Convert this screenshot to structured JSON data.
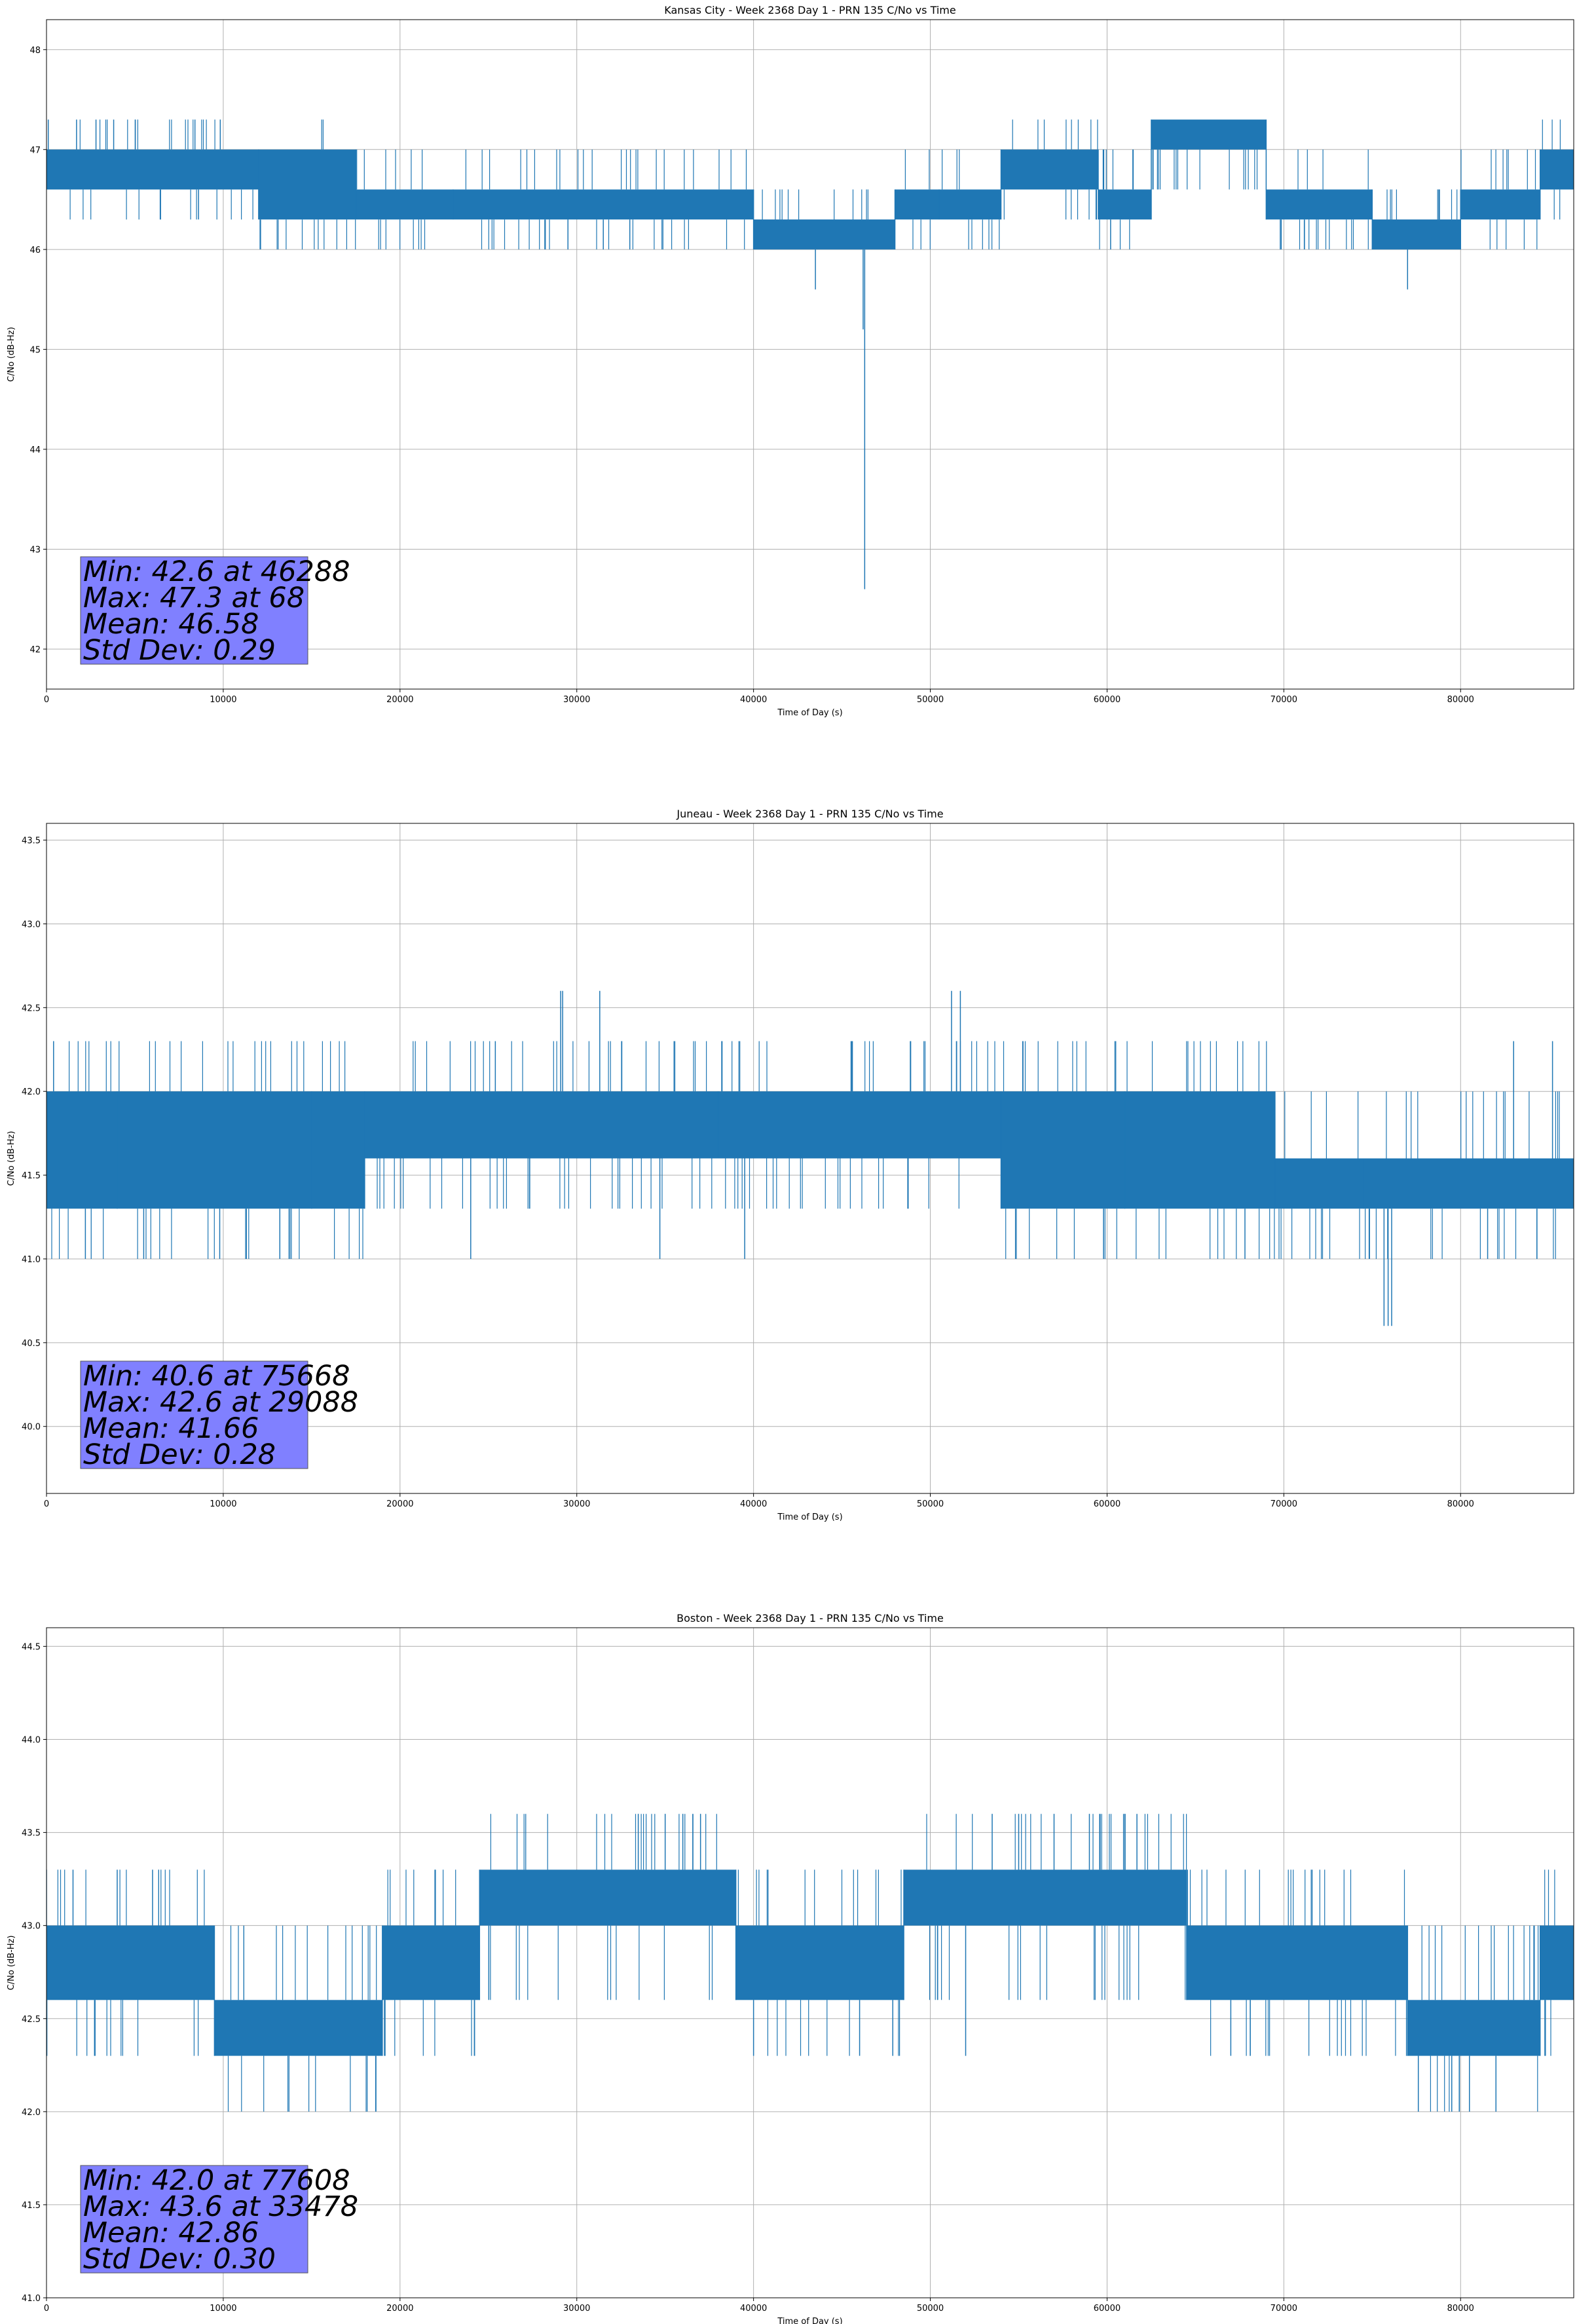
{
  "figure": {
    "background": "#ffffff"
  },
  "style": {
    "line_color": "#1f77b4",
    "grid_color": "#b0b0b0",
    "stats_box_color": "#8080ff",
    "stats_box_edge": "#555555"
  },
  "chart_data": [
    {
      "type": "line",
      "title": "Kansas City - Week 2368 Day 1 - PRN 135 C/No vs Time",
      "xlabel": "Time of Day (s)",
      "ylabel": "C/No (dB-Hz)",
      "xlim": [
        0,
        86400
      ],
      "ylim": [
        41.6,
        48.3
      ],
      "xticks": [
        0,
        10000,
        20000,
        30000,
        40000,
        50000,
        60000,
        70000,
        80000
      ],
      "yticks": [
        42,
        43,
        44,
        45,
        46,
        47,
        48
      ],
      "ytick_decimals": 0,
      "grid": true,
      "stats": [
        "Min: 42.6 at 46288",
        "Max: 47.3 at 68",
        "Mean: 46.58",
        "Std Dev: 0.29"
      ],
      "series": [
        {
          "name": "PRN 135 C/No",
          "levels": [
            46.0,
            46.3,
            46.6,
            47.0,
            47.3
          ],
          "segments": [
            {
              "x": [
                0,
                12000
              ],
              "lo": 46.6,
              "hi": 47.0
            },
            {
              "x": [
                12000,
                17500
              ],
              "lo": 46.3,
              "hi": 47.0
            },
            {
              "x": [
                17500,
                23000
              ],
              "lo": 46.3,
              "hi": 46.6
            },
            {
              "x": [
                23000,
                40000
              ],
              "lo": 46.3,
              "hi": 46.6
            },
            {
              "x": [
                40000,
                48000
              ],
              "lo": 46.0,
              "hi": 46.3
            },
            {
              "x": [
                48000,
                50500
              ],
              "lo": 46.3,
              "hi": 46.6
            },
            {
              "x": [
                50500,
                54000
              ],
              "lo": 46.3,
              "hi": 46.6
            },
            {
              "x": [
                54000,
                59500
              ],
              "lo": 46.6,
              "hi": 47.0
            },
            {
              "x": [
                59500,
                62500
              ],
              "lo": 46.3,
              "hi": 46.6
            },
            {
              "x": [
                62500,
                69000
              ],
              "lo": 47.0,
              "hi": 47.3
            },
            {
              "x": [
                69000,
                75000
              ],
              "lo": 46.3,
              "hi": 46.6
            },
            {
              "x": [
                75000,
                80000
              ],
              "lo": 46.0,
              "hi": 46.3
            },
            {
              "x": [
                80000,
                84500
              ],
              "lo": 46.3,
              "hi": 46.6
            },
            {
              "x": [
                84500,
                86400
              ],
              "lo": 46.6,
              "hi": 47.0
            }
          ],
          "spikes": [
            [
              46288,
              42.6
            ],
            [
              46200,
              45.2
            ],
            [
              43500,
              45.6
            ],
            [
              77000,
              45.6
            ],
            [
              100,
              47.3
            ],
            [
              1700,
              47.3
            ],
            [
              2800,
              47.3
            ],
            [
              3800,
              47.3
            ],
            [
              8600,
              46.3
            ],
            [
              29500,
              46.0
            ],
            [
              31500,
              46.0
            ],
            [
              33000,
              46.0
            ],
            [
              60200,
              46.0
            ],
            [
              69800,
              46.0
            ]
          ]
        }
      ]
    },
    {
      "type": "line",
      "title": "Juneau - Week 2368 Day 1 - PRN 135 C/No vs Time",
      "xlabel": "Time of Day (s)",
      "ylabel": "C/No (dB-Hz)",
      "xlim": [
        0,
        86400
      ],
      "ylim": [
        39.6,
        43.6
      ],
      "xticks": [
        0,
        10000,
        20000,
        30000,
        40000,
        50000,
        60000,
        70000,
        80000
      ],
      "yticks": [
        40.0,
        40.5,
        41.0,
        41.5,
        42.0,
        42.5,
        43.0,
        43.5
      ],
      "ytick_decimals": 1,
      "grid": true,
      "stats": [
        "Min: 40.6 at 75668",
        "Max: 42.6 at 29088",
        "Mean: 41.66",
        "Std Dev: 0.28"
      ],
      "series": [
        {
          "name": "PRN 135 C/No",
          "levels": [
            41.0,
            41.3,
            41.6,
            42.0,
            42.3
          ],
          "segments": [
            {
              "x": [
                0,
                4000
              ],
              "lo": 41.3,
              "hi": 42.0
            },
            {
              "x": [
                4000,
                15000
              ],
              "lo": 41.3,
              "hi": 42.0
            },
            {
              "x": [
                15000,
                18000
              ],
              "lo": 41.3,
              "hi": 42.0
            },
            {
              "x": [
                18000,
                26000
              ],
              "lo": 41.6,
              "hi": 42.0
            },
            {
              "x": [
                26000,
                38000
              ],
              "lo": 41.6,
              "hi": 42.0
            },
            {
              "x": [
                38000,
                54000
              ],
              "lo": 41.6,
              "hi": 42.0
            },
            {
              "x": [
                54000,
                61000
              ],
              "lo": 41.3,
              "hi": 42.0
            },
            {
              "x": [
                61000,
                69500
              ],
              "lo": 41.3,
              "hi": 42.0
            },
            {
              "x": [
                69500,
                74500
              ],
              "lo": 41.3,
              "hi": 41.6
            },
            {
              "x": [
                74500,
                86400
              ],
              "lo": 41.3,
              "hi": 41.6
            }
          ],
          "spikes": [
            [
              29088,
              42.6
            ],
            [
              29200,
              42.6
            ],
            [
              31300,
              42.6
            ],
            [
              51200,
              42.6
            ],
            [
              51700,
              42.6
            ],
            [
              75668,
              40.6
            ],
            [
              75900,
              40.6
            ],
            [
              76100,
              40.6
            ],
            [
              400,
              42.3
            ],
            [
              2200,
              41.0
            ],
            [
              5500,
              41.0
            ],
            [
              9800,
              41.0
            ],
            [
              13200,
              41.0
            ],
            [
              24000,
              41.0
            ],
            [
              34700,
              41.0
            ],
            [
              39500,
              41.0
            ],
            [
              59800,
              41.0
            ],
            [
              67800,
              41.0
            ],
            [
              83000,
              42.3
            ],
            [
              85200,
              42.3
            ]
          ]
        }
      ]
    },
    {
      "type": "line",
      "title": "Boston - Week 2368 Day 1 - PRN 135 C/No vs Time",
      "xlabel": "Time of Day (s)",
      "ylabel": "C/No (dB-Hz)",
      "xlim": [
        0,
        86400
      ],
      "ylim": [
        41.0,
        44.6
      ],
      "xticks": [
        0,
        10000,
        20000,
        30000,
        40000,
        50000,
        60000,
        70000,
        80000
      ],
      "yticks": [
        41.0,
        41.5,
        42.0,
        42.5,
        43.0,
        43.5,
        44.0,
        44.5
      ],
      "ytick_decimals": 1,
      "grid": true,
      "stats": [
        "Min: 42.0 at 77608",
        "Max: 43.6 at 33478",
        "Mean: 42.86",
        "Std Dev: 0.30"
      ],
      "series": [
        {
          "name": "PRN 135 C/No",
          "levels": [
            42.0,
            42.3,
            42.6,
            43.0,
            43.3,
            43.6
          ],
          "segments": [
            {
              "x": [
                0,
                9500
              ],
              "lo": 42.6,
              "hi": 43.0
            },
            {
              "x": [
                9500,
                19000
              ],
              "lo": 42.3,
              "hi": 42.6
            },
            {
              "x": [
                19000,
                24500
              ],
              "lo": 42.6,
              "hi": 43.0
            },
            {
              "x": [
                24500,
                39000
              ],
              "lo": 43.0,
              "hi": 43.3
            },
            {
              "x": [
                39000,
                48500
              ],
              "lo": 42.6,
              "hi": 43.0
            },
            {
              "x": [
                48500,
                64500
              ],
              "lo": 43.0,
              "hi": 43.3
            },
            {
              "x": [
                64500,
                77000
              ],
              "lo": 42.6,
              "hi": 43.0
            },
            {
              "x": [
                77000,
                84500
              ],
              "lo": 42.3,
              "hi": 42.6
            },
            {
              "x": [
                84500,
                86400
              ],
              "lo": 42.6,
              "hi": 43.0
            }
          ],
          "spikes": [
            [
              33478,
              43.6
            ],
            [
              35000,
              43.6
            ],
            [
              36000,
              43.6
            ],
            [
              37000,
              43.6
            ],
            [
              53500,
              43.6
            ],
            [
              55000,
              43.6
            ],
            [
              57000,
              43.6
            ],
            [
              59000,
              43.6
            ],
            [
              61000,
              43.6
            ],
            [
              77608,
              42.0
            ],
            [
              79500,
              42.0
            ],
            [
              80500,
              42.0
            ],
            [
              82000,
              42.0
            ],
            [
              0,
              43.3
            ],
            [
              1500,
              43.3
            ],
            [
              4000,
              43.3
            ],
            [
              6000,
              43.3
            ],
            [
              22000,
              43.3
            ],
            [
              40000,
              42.3
            ],
            [
              46000,
              42.3
            ],
            [
              52000,
              42.3
            ],
            [
              67000,
              42.3
            ]
          ]
        }
      ]
    }
  ]
}
